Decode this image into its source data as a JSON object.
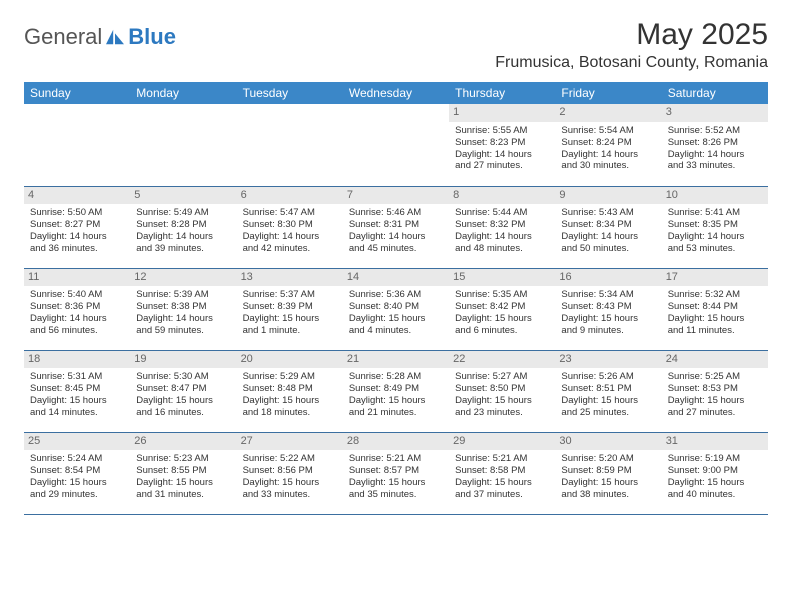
{
  "brand": {
    "general": "General",
    "blue": "Blue"
  },
  "title": "May 2025",
  "location": "Frumusica, Botosani County, Romania",
  "header_bg": "#3b87c8",
  "header_fg": "#ffffff",
  "daynum_bg": "#e9e9e9",
  "row_border": "#3b6fa0",
  "weekdays": [
    "Sunday",
    "Monday",
    "Tuesday",
    "Wednesday",
    "Thursday",
    "Friday",
    "Saturday"
  ],
  "weeks": [
    [
      null,
      null,
      null,
      null,
      {
        "n": "1",
        "sr": "5:55 AM",
        "ss": "8:23 PM",
        "dl": "14 hours and 27 minutes."
      },
      {
        "n": "2",
        "sr": "5:54 AM",
        "ss": "8:24 PM",
        "dl": "14 hours and 30 minutes."
      },
      {
        "n": "3",
        "sr": "5:52 AM",
        "ss": "8:26 PM",
        "dl": "14 hours and 33 minutes."
      }
    ],
    [
      {
        "n": "4",
        "sr": "5:50 AM",
        "ss": "8:27 PM",
        "dl": "14 hours and 36 minutes."
      },
      {
        "n": "5",
        "sr": "5:49 AM",
        "ss": "8:28 PM",
        "dl": "14 hours and 39 minutes."
      },
      {
        "n": "6",
        "sr": "5:47 AM",
        "ss": "8:30 PM",
        "dl": "14 hours and 42 minutes."
      },
      {
        "n": "7",
        "sr": "5:46 AM",
        "ss": "8:31 PM",
        "dl": "14 hours and 45 minutes."
      },
      {
        "n": "8",
        "sr": "5:44 AM",
        "ss": "8:32 PM",
        "dl": "14 hours and 48 minutes."
      },
      {
        "n": "9",
        "sr": "5:43 AM",
        "ss": "8:34 PM",
        "dl": "14 hours and 50 minutes."
      },
      {
        "n": "10",
        "sr": "5:41 AM",
        "ss": "8:35 PM",
        "dl": "14 hours and 53 minutes."
      }
    ],
    [
      {
        "n": "11",
        "sr": "5:40 AM",
        "ss": "8:36 PM",
        "dl": "14 hours and 56 minutes."
      },
      {
        "n": "12",
        "sr": "5:39 AM",
        "ss": "8:38 PM",
        "dl": "14 hours and 59 minutes."
      },
      {
        "n": "13",
        "sr": "5:37 AM",
        "ss": "8:39 PM",
        "dl": "15 hours and 1 minute."
      },
      {
        "n": "14",
        "sr": "5:36 AM",
        "ss": "8:40 PM",
        "dl": "15 hours and 4 minutes."
      },
      {
        "n": "15",
        "sr": "5:35 AM",
        "ss": "8:42 PM",
        "dl": "15 hours and 6 minutes."
      },
      {
        "n": "16",
        "sr": "5:34 AM",
        "ss": "8:43 PM",
        "dl": "15 hours and 9 minutes."
      },
      {
        "n": "17",
        "sr": "5:32 AM",
        "ss": "8:44 PM",
        "dl": "15 hours and 11 minutes."
      }
    ],
    [
      {
        "n": "18",
        "sr": "5:31 AM",
        "ss": "8:45 PM",
        "dl": "15 hours and 14 minutes."
      },
      {
        "n": "19",
        "sr": "5:30 AM",
        "ss": "8:47 PM",
        "dl": "15 hours and 16 minutes."
      },
      {
        "n": "20",
        "sr": "5:29 AM",
        "ss": "8:48 PM",
        "dl": "15 hours and 18 minutes."
      },
      {
        "n": "21",
        "sr": "5:28 AM",
        "ss": "8:49 PM",
        "dl": "15 hours and 21 minutes."
      },
      {
        "n": "22",
        "sr": "5:27 AM",
        "ss": "8:50 PM",
        "dl": "15 hours and 23 minutes."
      },
      {
        "n": "23",
        "sr": "5:26 AM",
        "ss": "8:51 PM",
        "dl": "15 hours and 25 minutes."
      },
      {
        "n": "24",
        "sr": "5:25 AM",
        "ss": "8:53 PM",
        "dl": "15 hours and 27 minutes."
      }
    ],
    [
      {
        "n": "25",
        "sr": "5:24 AM",
        "ss": "8:54 PM",
        "dl": "15 hours and 29 minutes."
      },
      {
        "n": "26",
        "sr": "5:23 AM",
        "ss": "8:55 PM",
        "dl": "15 hours and 31 minutes."
      },
      {
        "n": "27",
        "sr": "5:22 AM",
        "ss": "8:56 PM",
        "dl": "15 hours and 33 minutes."
      },
      {
        "n": "28",
        "sr": "5:21 AM",
        "ss": "8:57 PM",
        "dl": "15 hours and 35 minutes."
      },
      {
        "n": "29",
        "sr": "5:21 AM",
        "ss": "8:58 PM",
        "dl": "15 hours and 37 minutes."
      },
      {
        "n": "30",
        "sr": "5:20 AM",
        "ss": "8:59 PM",
        "dl": "15 hours and 38 minutes."
      },
      {
        "n": "31",
        "sr": "5:19 AM",
        "ss": "9:00 PM",
        "dl": "15 hours and 40 minutes."
      }
    ]
  ],
  "labels": {
    "sunrise": "Sunrise: ",
    "sunset": "Sunset: ",
    "daylight": "Daylight: "
  }
}
